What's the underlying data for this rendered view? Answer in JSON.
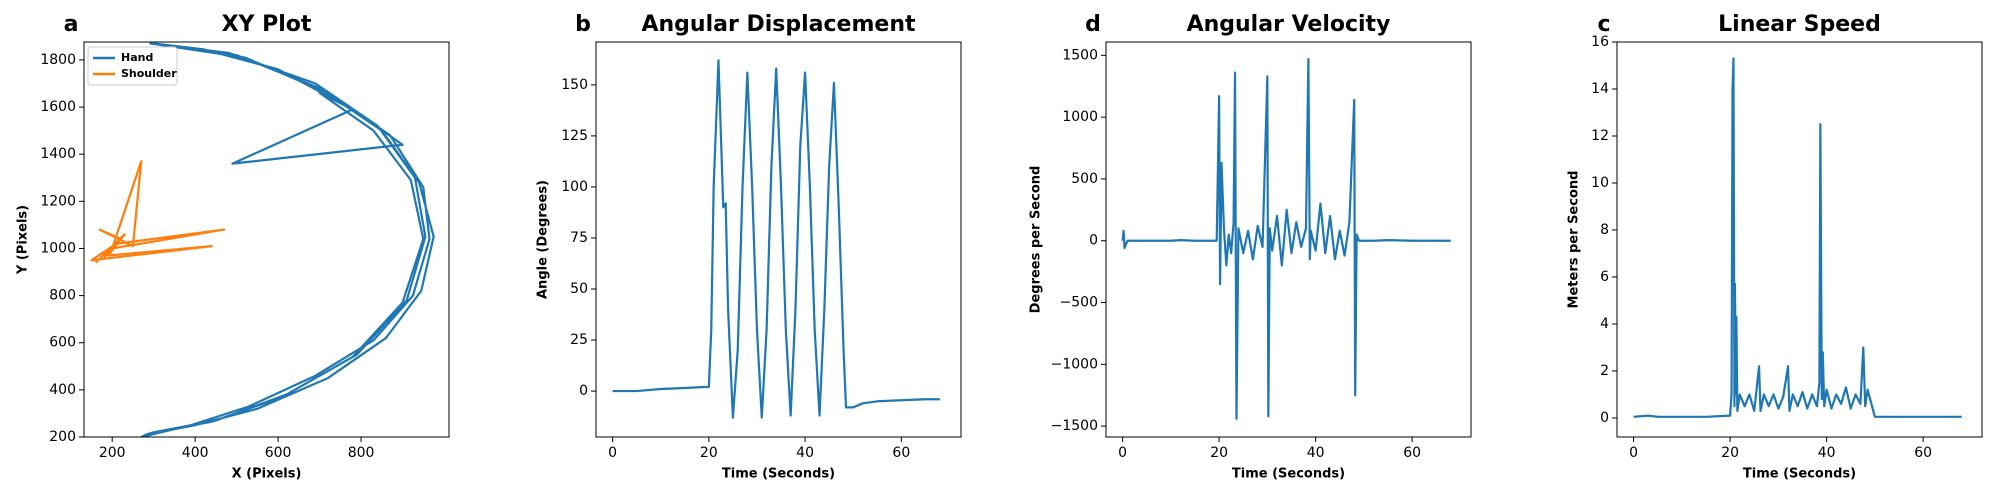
{
  "chart_data": [
    {
      "type": "line",
      "panel_label": "a",
      "title": "XY Plot",
      "xlabel": "X (Pixels)",
      "ylabel": "Y (Pixels)",
      "xlim": [
        132,
        1012
      ],
      "ylim": [
        200,
        1876
      ],
      "xticks": [
        200,
        400,
        600,
        800
      ],
      "yticks": [
        200,
        400,
        600,
        800,
        1000,
        1200,
        1400,
        1600,
        1800
      ],
      "legend": "upper left",
      "series": [
        {
          "name": "Hand",
          "color": "#1f77b4",
          "x": [
            290,
            500,
            700,
            850,
            940,
            975,
            945,
            860,
            720,
            550,
            400,
            280,
            300,
            450,
            620,
            790,
            910,
            955,
            930,
            840,
            690,
            480,
            310,
            330,
            520,
            720,
            870,
            950,
            965,
            925,
            830,
            690,
            530,
            390,
            270,
            290,
            440,
            610,
            780,
            900,
            950,
            920,
            830,
            700,
            780,
            490,
            900,
            780,
            600,
            420,
            300
          ],
          "values": [
            1870,
            1820,
            1680,
            1500,
            1280,
            1050,
            820,
            620,
            450,
            320,
            250,
            210,
            220,
            270,
            380,
            550,
            780,
            1050,
            1300,
            1520,
            1700,
            1830,
            1865,
            1860,
            1810,
            1660,
            1480,
            1260,
            1040,
            800,
            610,
            460,
            330,
            250,
            200,
            215,
            265,
            370,
            540,
            770,
            1040,
            1290,
            1500,
            1660,
            1590,
            1360,
            1440,
            1590,
            1760,
            1845,
            1870
          ]
        },
        {
          "name": "Shoulder",
          "color": "#ff7f0e",
          "x": [
            180,
            220,
            170,
            250,
            270,
            200,
            470,
            210,
            150,
            440,
            190,
            230,
            160
          ],
          "values": [
            960,
            1040,
            1080,
            1010,
            1370,
            1000,
            1080,
            1020,
            950,
            1010,
            970,
            1060,
            940
          ]
        }
      ]
    },
    {
      "type": "line",
      "panel_label": "b",
      "title": "Angular Displacement",
      "xlabel": "Time (Seconds)",
      "ylabel": "Angle (Degrees)",
      "xlim": [
        -3.45,
        72.4
      ],
      "ylim": [
        -22.5,
        171
      ],
      "xticks": [
        0,
        20,
        40,
        60
      ],
      "yticks": [
        0,
        25,
        50,
        75,
        100,
        125,
        150
      ],
      "x": [
        0,
        5,
        10,
        15,
        19,
        20,
        20.5,
        21,
        22,
        23,
        23.5,
        24,
        25,
        26,
        27,
        28,
        29,
        30,
        31,
        32,
        33,
        34,
        35,
        36,
        37,
        38,
        39,
        40,
        41,
        42,
        43,
        44,
        45,
        46,
        47,
        48,
        48.5,
        50,
        52,
        55,
        60,
        65,
        68
      ],
      "series": [
        {
          "color": "#1f77b4",
          "values": [
            0,
            0,
            1,
            1.5,
            2,
            2,
            30,
            100,
            162,
            90,
            92,
            40,
            -13,
            20,
            100,
            156,
            100,
            30,
            -13,
            30,
            110,
            158,
            100,
            30,
            -12,
            40,
            120,
            156,
            100,
            30,
            -12,
            40,
            110,
            151,
            90,
            20,
            -8,
            -8,
            -6,
            -5,
            -4.5,
            -4,
            -4
          ]
        }
      ]
    },
    {
      "type": "line",
      "panel_label": "d",
      "title": "Angular Velocity",
      "xlabel": "Time (Seconds)",
      "ylabel": "Degrees per Second",
      "xlim": [
        -3.44,
        72.2
      ],
      "ylim": [
        -1588,
        1608
      ],
      "xticks": [
        0,
        20,
        40,
        60
      ],
      "yticks": [
        {
          "value": -1500,
          "label": "−1500"
        },
        {
          "value": -1000,
          "label": "−1000"
        },
        {
          "value": -500,
          "label": "−500"
        },
        0,
        500,
        1000,
        1500
      ],
      "x": [
        0,
        0.2,
        0.4,
        1,
        5,
        10,
        12,
        15,
        19.5,
        20,
        20.2,
        20.5,
        21,
        21.5,
        22,
        22.5,
        23,
        23.3,
        23.6,
        24,
        25,
        26,
        27,
        28,
        29,
        30,
        30.2,
        30.5,
        31,
        32,
        33,
        34,
        35,
        36,
        37,
        38,
        38.5,
        38.8,
        39,
        40,
        41,
        42,
        43,
        44,
        45,
        46,
        47,
        48,
        48.2,
        48.5,
        49,
        52,
        55,
        60,
        65,
        68
      ],
      "series": [
        {
          "color": "#1f77b4",
          "values": [
            0,
            80,
            -60,
            0,
            0,
            0,
            5,
            0,
            0,
            1170,
            -350,
            630,
            100,
            -200,
            50,
            -100,
            150,
            1360,
            -1440,
            100,
            -100,
            80,
            -150,
            120,
            -50,
            1330,
            -1420,
            100,
            -80,
            200,
            -200,
            250,
            -100,
            150,
            -50,
            100,
            1470,
            -150,
            80,
            -80,
            300,
            -100,
            200,
            -150,
            80,
            -120,
            150,
            1140,
            -1250,
            50,
            0,
            0,
            5,
            0,
            0,
            0
          ]
        }
      ]
    },
    {
      "type": "line",
      "panel_label": "c",
      "title": "Linear Speed",
      "xlabel": "Time (Seconds)",
      "ylabel": "Meters per Second",
      "xlim": [
        -3.44,
        72.2
      ],
      "ylim": [
        -0.81,
        16
      ],
      "xticks": [
        0,
        20,
        40,
        60
      ],
      "yticks": [
        0,
        2,
        4,
        6,
        8,
        10,
        12,
        14,
        16
      ],
      "x": [
        0,
        3,
        5,
        10,
        15,
        20,
        20.3,
        20.5,
        20.7,
        20.9,
        21,
        21.2,
        21.3,
        21.5,
        22,
        23,
        24,
        25,
        26,
        26.3,
        27,
        28,
        29,
        30,
        31,
        32,
        32.3,
        33,
        34,
        35,
        36,
        37,
        38,
        38.5,
        38.7,
        39,
        39.2,
        39.5,
        40,
        41,
        42,
        43,
        44,
        45,
        46,
        47,
        47.6,
        48,
        48.5,
        50,
        55,
        60,
        65,
        68
      ],
      "series": [
        {
          "color": "#1f77b4",
          "values": [
            0.05,
            0.1,
            0.05,
            0.05,
            0.05,
            0.1,
            1,
            14,
            15.3,
            0.5,
            5.7,
            1,
            4.3,
            0.3,
            1,
            0.5,
            1,
            0.3,
            2.2,
            0.3,
            1,
            0.5,
            1,
            0.4,
            0.9,
            2.2,
            0.3,
            1,
            0.5,
            1.1,
            0.4,
            1,
            0.5,
            1.5,
            12.5,
            0.8,
            2.8,
            0.5,
            1.2,
            0.4,
            1,
            0.6,
            1.3,
            0.4,
            1,
            0.6,
            3,
            0.5,
            1.2,
            0.05,
            0.05,
            0.05,
            0.05,
            0.05
          ]
        }
      ]
    }
  ]
}
